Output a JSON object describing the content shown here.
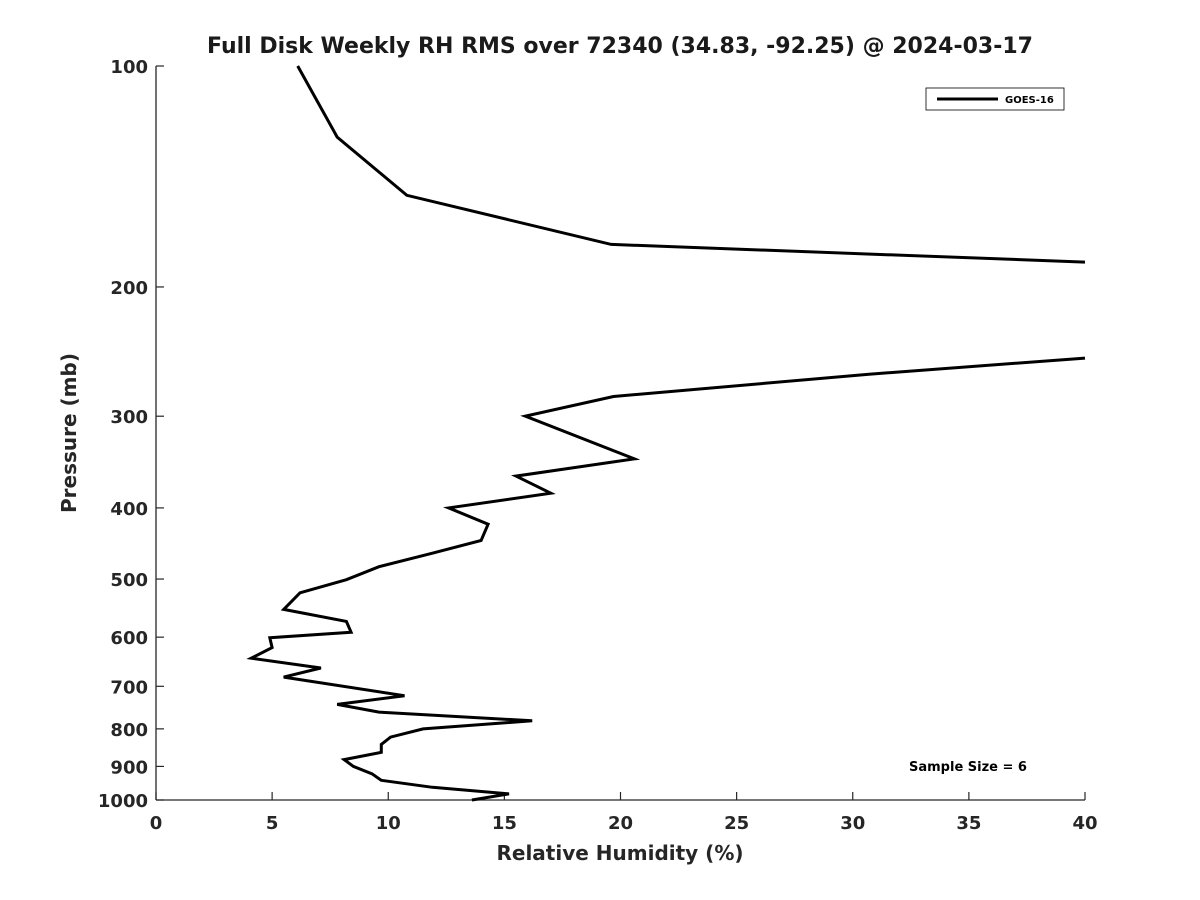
{
  "chart_data": {
    "type": "line",
    "title": "Full Disk Weekly RH RMS over 72340 (34.83, -92.25) @ 2024-03-17",
    "xlabel": "Relative Humidity (%)",
    "ylabel": "Pressure (mb)",
    "xlim": [
      0,
      40
    ],
    "ylim": [
      100,
      1000
    ],
    "y_scale": "log",
    "y_reversed": true,
    "x_ticks": [
      "0",
      "5",
      "10",
      "15",
      "20",
      "25",
      "30",
      "35",
      "40"
    ],
    "y_ticks": [
      "100",
      "200",
      "300",
      "400",
      "500",
      "600",
      "700",
      "800",
      "900",
      "1000"
    ],
    "grid": false,
    "legend_position": "top-right",
    "annotation": "Sample Size = 6",
    "series": [
      {
        "name": "GOES-16",
        "color": "#000000",
        "segments": [
          [
            {
              "x": 6.1,
              "y": 100
            },
            {
              "x": 7.8,
              "y": 125
            },
            {
              "x": 10.8,
              "y": 150
            },
            {
              "x": 19.6,
              "y": 175
            },
            {
              "x": 40.0,
              "y": 185
            }
          ],
          [
            {
              "x": 40.0,
              "y": 250
            },
            {
              "x": 30.7,
              "y": 263
            },
            {
              "x": 19.7,
              "y": 282
            },
            {
              "x": 15.9,
              "y": 300
            },
            {
              "x": 20.6,
              "y": 343
            },
            {
              "x": 15.5,
              "y": 362
            },
            {
              "x": 17.0,
              "y": 382
            },
            {
              "x": 12.6,
              "y": 400
            },
            {
              "x": 14.3,
              "y": 421
            },
            {
              "x": 14.0,
              "y": 443
            },
            {
              "x": 11.9,
              "y": 461
            },
            {
              "x": 9.6,
              "y": 481
            },
            {
              "x": 8.2,
              "y": 501
            },
            {
              "x": 6.2,
              "y": 522
            },
            {
              "x": 5.5,
              "y": 550
            },
            {
              "x": 8.2,
              "y": 571
            },
            {
              "x": 8.4,
              "y": 591
            },
            {
              "x": 4.9,
              "y": 601
            },
            {
              "x": 5.0,
              "y": 620
            },
            {
              "x": 4.1,
              "y": 641
            },
            {
              "x": 7.1,
              "y": 661
            },
            {
              "x": 5.5,
              "y": 680
            },
            {
              "x": 10.7,
              "y": 721
            },
            {
              "x": 7.8,
              "y": 741
            },
            {
              "x": 9.6,
              "y": 759
            },
            {
              "x": 16.2,
              "y": 780
            },
            {
              "x": 11.5,
              "y": 800
            },
            {
              "x": 10.1,
              "y": 821
            },
            {
              "x": 9.7,
              "y": 840
            },
            {
              "x": 9.7,
              "y": 861
            },
            {
              "x": 8.1,
              "y": 881
            },
            {
              "x": 8.5,
              "y": 900
            },
            {
              "x": 9.3,
              "y": 921
            },
            {
              "x": 9.7,
              "y": 940
            },
            {
              "x": 11.9,
              "y": 961
            },
            {
              "x": 15.2,
              "y": 981
            },
            {
              "x": 13.6,
              "y": 1000
            }
          ]
        ]
      }
    ]
  }
}
